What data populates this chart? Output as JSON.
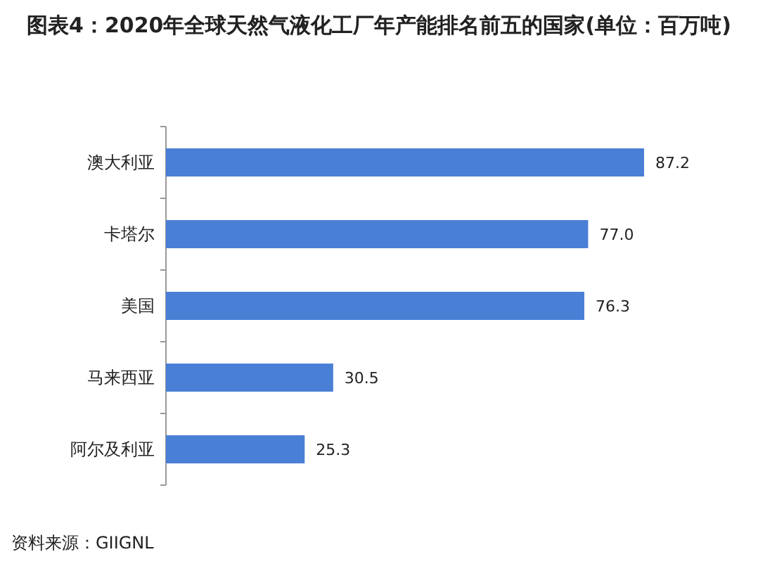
{
  "chart_data": {
    "type": "bar",
    "orientation": "horizontal",
    "title": "图表4：2020年全球天然气液化工厂年产能排名前五的国家(单位：百万吨)",
    "categories": [
      "澳大利亚",
      "卡塔尔",
      "美国",
      "马来西亚",
      "阿尔及利亚"
    ],
    "values": [
      87.2,
      77.0,
      76.3,
      30.5,
      25.3
    ],
    "value_labels": [
      "87.2",
      "77.0",
      "76.3",
      "30.5",
      "25.3"
    ],
    "color": "#4a7fd6",
    "annotations": [
      "资料来源：GIIGNL"
    ]
  }
}
